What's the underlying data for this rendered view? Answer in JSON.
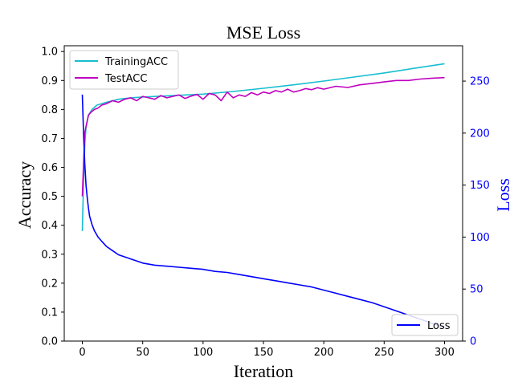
{
  "chart_data": {
    "type": "line",
    "title": "MSE Loss",
    "xlabel": "Iteration",
    "ylabel": "Accuracy",
    "y2label": "Loss",
    "xlim": [
      -15,
      315
    ],
    "ylim": [
      0,
      1.02
    ],
    "y2lim": [
      0,
      284
    ],
    "xticks": [
      0,
      50,
      100,
      150,
      200,
      250,
      300
    ],
    "yticks": [
      0.0,
      0.1,
      0.2,
      0.3,
      0.4,
      0.5,
      0.6,
      0.7,
      0.8,
      0.9,
      1.0
    ],
    "y2ticks": [
      0,
      50,
      100,
      150,
      200,
      250
    ],
    "legend_left": {
      "position": "upper-left",
      "entries": [
        "TrainingACC",
        "TestACC"
      ]
    },
    "legend_right": {
      "position": "lower-right",
      "entries": [
        "Loss"
      ]
    },
    "series": [
      {
        "name": "TrainingACC",
        "axis": "left",
        "color": "#17becf",
        "x": [
          0,
          1,
          2,
          3,
          5,
          8,
          12,
          20,
          30,
          40,
          50,
          75,
          100,
          125,
          150,
          175,
          200,
          225,
          250,
          275,
          300
        ],
        "values": [
          0.38,
          0.55,
          0.68,
          0.74,
          0.78,
          0.8,
          0.815,
          0.825,
          0.835,
          0.84,
          0.843,
          0.848,
          0.853,
          0.862,
          0.873,
          0.885,
          0.898,
          0.912,
          0.926,
          0.942,
          0.958
        ]
      },
      {
        "name": "TestACC",
        "axis": "left",
        "color": "#bf00bf",
        "x": [
          0,
          1,
          2,
          3,
          4,
          5,
          7,
          10,
          13,
          16,
          20,
          25,
          30,
          35,
          40,
          45,
          50,
          55,
          60,
          65,
          70,
          75,
          80,
          85,
          90,
          95,
          100,
          105,
          110,
          115,
          120,
          125,
          130,
          135,
          140,
          145,
          150,
          155,
          160,
          165,
          170,
          175,
          180,
          185,
          190,
          195,
          200,
          210,
          220,
          230,
          240,
          250,
          260,
          270,
          280,
          290,
          300
        ],
        "values": [
          0.5,
          0.61,
          0.72,
          0.74,
          0.76,
          0.78,
          0.79,
          0.8,
          0.805,
          0.815,
          0.82,
          0.83,
          0.825,
          0.835,
          0.84,
          0.83,
          0.845,
          0.84,
          0.835,
          0.848,
          0.84,
          0.845,
          0.85,
          0.838,
          0.846,
          0.852,
          0.835,
          0.855,
          0.85,
          0.83,
          0.86,
          0.84,
          0.85,
          0.845,
          0.858,
          0.85,
          0.86,
          0.855,
          0.865,
          0.86,
          0.87,
          0.86,
          0.865,
          0.872,
          0.868,
          0.875,
          0.87,
          0.88,
          0.876,
          0.885,
          0.89,
          0.895,
          0.9,
          0.9,
          0.905,
          0.908,
          0.91
        ]
      },
      {
        "name": "Loss",
        "axis": "right",
        "color": "#0000ff",
        "x": [
          0,
          1,
          2,
          3,
          4,
          5,
          6,
          8,
          10,
          13,
          16,
          20,
          25,
          30,
          40,
          50,
          60,
          70,
          80,
          90,
          100,
          110,
          120,
          130,
          140,
          150,
          160,
          170,
          180,
          190,
          200,
          210,
          220,
          230,
          240,
          250,
          260,
          270,
          280,
          290,
          300
        ],
        "values": [
          237,
          200,
          170,
          150,
          138,
          128,
          120,
          112,
          106,
          100,
          96,
          91,
          87,
          83,
          79,
          75,
          73,
          72,
          71,
          70,
          69,
          67,
          66,
          64,
          62,
          60,
          58,
          56,
          54,
          52,
          49,
          46,
          43,
          40,
          37,
          33,
          29,
          25,
          21,
          17,
          13
        ]
      }
    ]
  }
}
